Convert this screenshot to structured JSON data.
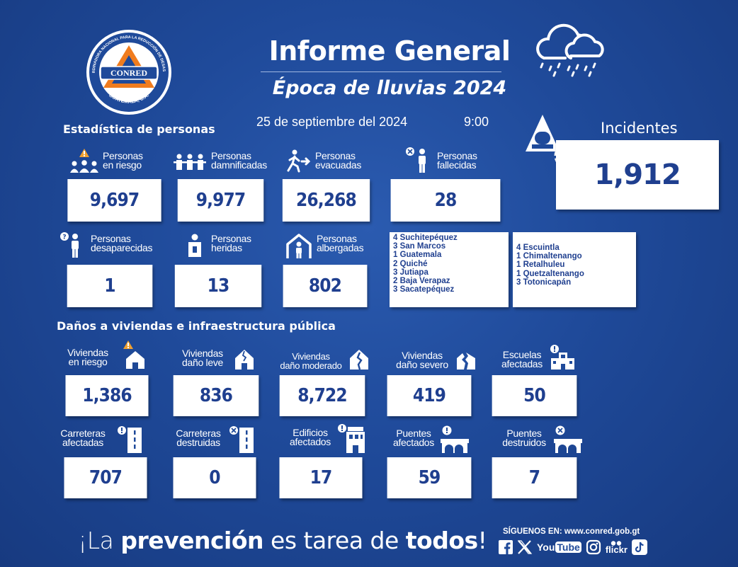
{
  "logo": {
    "org_text": "COORDINADORA NACIONAL PARA LA REDUCCIÓN DE DESASTRES",
    "name": "CONRED",
    "location": "GUATEMALA, C.A."
  },
  "header": {
    "title": "Informe General",
    "subtitle": "Época de lluvias 2024",
    "date": "25 de septiembre del 2024",
    "time": "9:00"
  },
  "sections": {
    "personas": "Estadística de personas",
    "danos": "Daños a viviendas e infraestructura pública"
  },
  "incidents": {
    "label": "Incidentes",
    "value": "1,912"
  },
  "personas": {
    "riesgo": {
      "label1": "Personas",
      "label2": "en riesgo",
      "value": "9,697"
    },
    "damnificadas": {
      "label1": "Personas",
      "label2": "damnificadas",
      "value": "9,977"
    },
    "evacuadas": {
      "label1": "Personas",
      "label2": "evacuadas",
      "value": "26,268"
    },
    "fallecidas": {
      "label1": "Personas",
      "label2": "fallecidas",
      "value": "28"
    },
    "desaparecidas": {
      "label1": "Personas",
      "label2": "desaparecidas",
      "value": "1"
    },
    "heridas": {
      "label1": "Personas",
      "label2": "heridas",
      "value": "13"
    },
    "albergadas": {
      "label1": "Personas",
      "label2": "albergadas",
      "value": "802"
    }
  },
  "departments_left": [
    "4 Suchitepéquez",
    "3 San Marcos",
    "1 Guatemala",
    "2 Quiché",
    "3 Jutiapa",
    "2 Baja Verapaz",
    "3 Sacatepéquez"
  ],
  "departments_right": [
    "4 Escuintla",
    "1 Chimaltenango",
    "1 Retalhuleu",
    "1 Quetzaltenango",
    "3 Totonicapán"
  ],
  "danos": {
    "viv_riesgo": {
      "label1": "Viviendas",
      "label2": "en riesgo",
      "value": "1,386"
    },
    "viv_leve": {
      "label1": "Viviendas",
      "label2": "daño leve",
      "value": "836"
    },
    "viv_moderado": {
      "label1": "Viviendas",
      "label2": "daño moderado",
      "value": "8,722"
    },
    "viv_severo": {
      "label1": "Viviendas",
      "label2": "daño severo",
      "value": "419"
    },
    "escuelas": {
      "label1": "Escuelas",
      "label2": "afectadas",
      "value": "50"
    },
    "carr_afectadas": {
      "label1": "Carreteras",
      "label2": "afectadas",
      "value": "707"
    },
    "carr_destruidas": {
      "label1": "Carreteras",
      "label2": "destruidas",
      "value": "0"
    },
    "edificios": {
      "label1": "Edificios",
      "label2": "afectados",
      "value": "17"
    },
    "puentes_afectados": {
      "label1": "Puentes",
      "label2": "afectados",
      "value": "59"
    },
    "puentes_destruidos": {
      "label1": "Puentes",
      "label2": "destruidos",
      "value": "7"
    }
  },
  "footer": {
    "slogan_1": "¡La ",
    "slogan_2": "prevención",
    "slogan_3": " es tarea de ",
    "slogan_4": "todos",
    "slogan_5": "!",
    "follow": "SÍGUENOS EN:",
    "url": "www.conred.gob.gt",
    "social": [
      "facebook-icon",
      "x-icon",
      "youtube-icon",
      "instagram-icon",
      "flickr-icon",
      "tiktok-icon"
    ],
    "youtube_text": "You",
    "youtube_tube": "Tube",
    "flickr_text": "flickr"
  },
  "colors": {
    "background": "#1f4a9a",
    "card_text": "#1f3f8f",
    "logo_orange": "#f07c1e",
    "warning_orange": "#f0a030"
  }
}
